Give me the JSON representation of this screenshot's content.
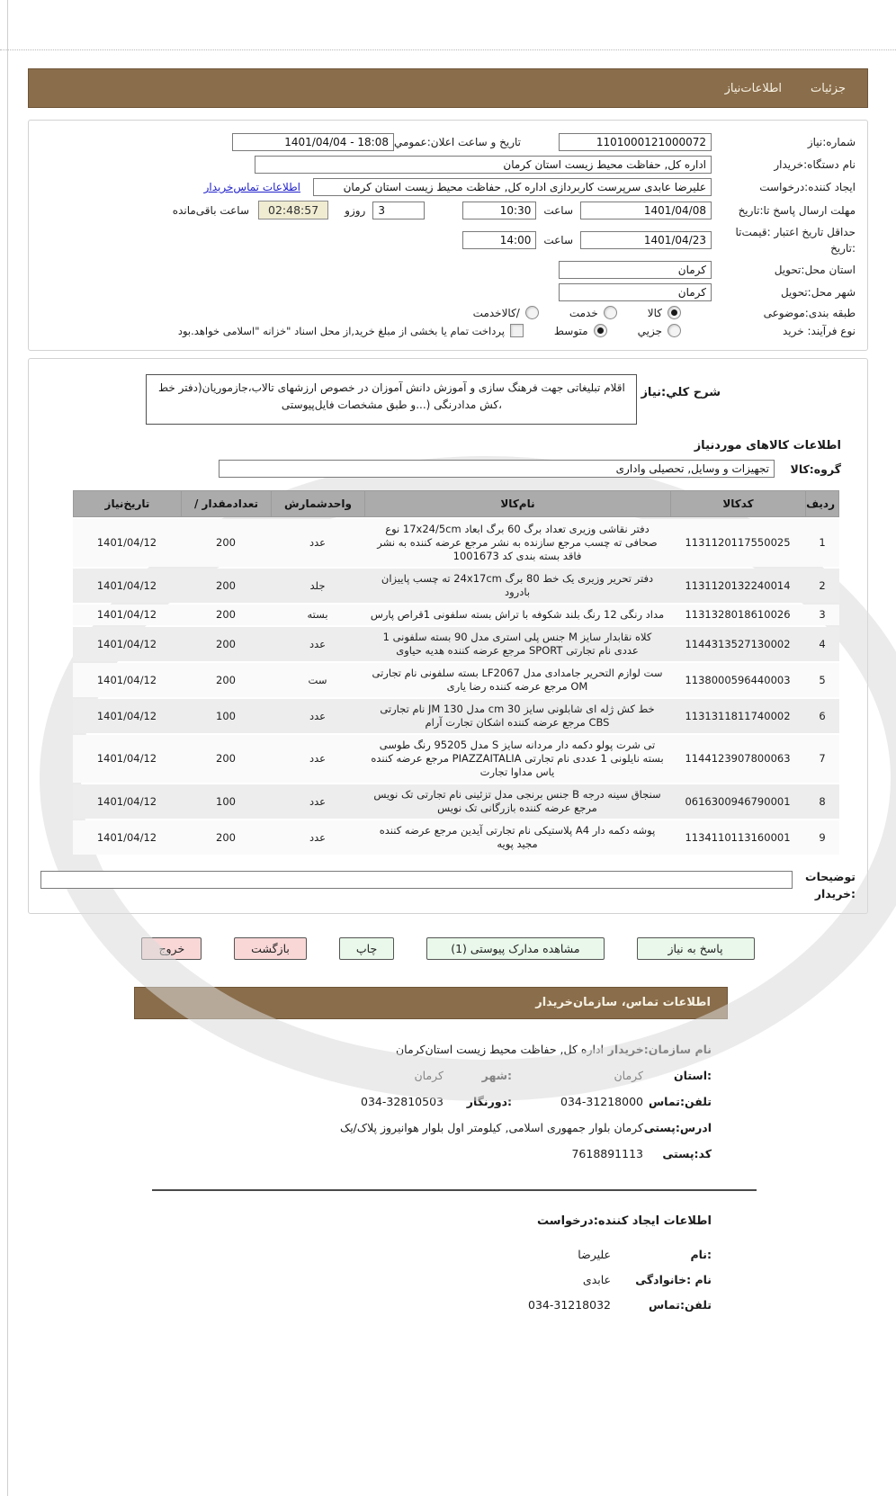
{
  "tabs": {
    "details": "جزئیات",
    "need_info": "اطلاعات‌نیاز"
  },
  "form": {
    "need_number": {
      "label": "شماره:نیاز",
      "value": "1101000121000072"
    },
    "announce": {
      "label": "تاریخ و ساعت اعلان:عمومي",
      "value": "1401/04/04 - 18:08"
    },
    "buyer_org": {
      "label": "نام دستگاه:خریدار",
      "value": "اداره کل, حفاظت محیط زیست استان کرمان"
    },
    "creator": {
      "label": "ایجاد کننده:درخواست",
      "value": "علیرضا عابدی سرپرست کاربردازی اداره کل, حفاظت محیط زیست استان کرمان",
      "link": "اطلاعات تماس‌خریدار"
    },
    "deadline": {
      "label": "مهلت ارسال پاسخ تا:تاریخ",
      "date": "1401/04/08",
      "hour_label": "ساعت",
      "time": "10:30",
      "days": "3",
      "days_label": "روزو",
      "countdown": "02:48:57",
      "remaining_label": "ساعت باقی‌مانده"
    },
    "validity": {
      "label_line1": "حداقل تاریخ اعتبار :قیمت‌تا",
      "label_line2": ":تاریخ",
      "date": "1401/04/23",
      "hour_label": "ساعت",
      "time": "14:00"
    },
    "province": {
      "label": "استان محل:تحویل",
      "value": "کرمان"
    },
    "city": {
      "label": "شهر محل:تحویل",
      "value": "کرمان"
    },
    "classification": {
      "label": "طبقه بندی:موضوعی",
      "options": [
        {
          "label": "کالا",
          "checked": true
        },
        {
          "label": "خدمت",
          "checked": false
        },
        {
          "label": "/کالاخدمت",
          "checked": false
        }
      ]
    },
    "process": {
      "label": "نوع فرآیند: خرید",
      "options": [
        {
          "label": "جزیي",
          "checked": false
        },
        {
          "label": "متوسط",
          "checked": true
        }
      ],
      "checkbox_label": "پرداخت تمام یا بخشی از مبلغ خرید,از محل اسناد \"خزانه \"اسلامی خواهد.بود",
      "checkbox_checked": false
    }
  },
  "need_desc": {
    "label": "شرح کلي:نیاز",
    "value": "اقلام تبلیغاتی جهت فرهنگ سازی و آموزش دانش آموزان در خصوص ارزشهای تالاب،جازموریان(دفتر خط ،کش مدادرنگی (...و طبق مشخصات فایل‌پیوستی"
  },
  "goods_section": {
    "heading": "اطلاعات کالاهای موردنیاز",
    "group_label": "گروه:کالا",
    "group_value": "تجهیزات و وسایل, تحصیلی واداری"
  },
  "items_table": {
    "columns": [
      "ردیف",
      "کدکالا",
      "نام‌کالا",
      "واحدشمارش",
      "تعدادمقدار /",
      "تاریخ‌نیاز"
    ],
    "rows": [
      {
        "row": "1",
        "code": "1131120117550025",
        "name": "دفتر نقاشی وزیری تعداد برگ 60 برگ ابعاد 17x24/5cm نوع صحافی ته چسب مرجع سازنده به نشر مرجع عرضه کننده به نشر فاقد بسته بندی کد 1001673",
        "unit": "عدد",
        "qty": "200",
        "date": "1401/04/12"
      },
      {
        "row": "2",
        "code": "1131120132240014",
        "name": "دفتر تحریر وزیری یک خط 80 برگ 24x17cm ته چسب پاییزان بادرود",
        "unit": "جلد",
        "qty": "200",
        "date": "1401/04/12"
      },
      {
        "row": "3",
        "code": "1131328018610026",
        "name": "مداد رنگی 12 رنگ بلند شکوفه با تراش بسته سلفونی 1قراص پارس",
        "unit": "بسته",
        "qty": "200",
        "date": "1401/04/12"
      },
      {
        "row": "4",
        "code": "1144313527130002",
        "name": "کلاه نقابدار سایز M جنس پلی استری مدل 90 بسته سلفونی 1 عددی نام تجارتی SPORT مرجع عرضه کننده هدیه حیاوی",
        "unit": "عدد",
        "qty": "200",
        "date": "1401/04/12"
      },
      {
        "row": "5",
        "code": "1138000596440003",
        "name": "ست لوازم التحریر جامدادی مدل LF2067 بسته سلفونی نام تجارتی OM مرجع عرضه کننده رضا یاری",
        "unit": "ست",
        "qty": "200",
        "date": "1401/04/12"
      },
      {
        "row": "6",
        "code": "1131311811740002",
        "name": "خط کش ژله ای شابلونی سایز 30 cm مدل JM 130 نام تجارتی CBS مرجع عرضه کننده اشکان تجارت آرام",
        "unit": "عدد",
        "qty": "100",
        "date": "1401/04/12"
      },
      {
        "row": "7",
        "code": "1144123907800063",
        "name": "تی شرت پولو دکمه دار مردانه سایز S مدل 95205 رنگ طوسی بسته نایلونی 1 عددی نام تجارتی PIAZZAITALIA مرجع عرضه کننده یاس مداوا تجارت",
        "unit": "عدد",
        "qty": "200",
        "date": "1401/04/12"
      },
      {
        "row": "8",
        "code": "0616300946790001",
        "name": "سنجاق سینه درجه B جنس برنجی مدل تزئینی نام تجارتی تک نویس مرجع عرضه کننده بازرگانی تک نویس",
        "unit": "عدد",
        "qty": "100",
        "date": "1401/04/12"
      },
      {
        "row": "9",
        "code": "1134110113160001",
        "name": "پوشه دکمه دار A4 پلاستیکی نام تجارتی آیدین مرجع عرضه کننده مجید پویه",
        "unit": "عدد",
        "qty": "200",
        "date": "1401/04/12"
      }
    ]
  },
  "notes": {
    "label_line1": "توضیحات",
    "label_line2": ":خریدار",
    "value": ""
  },
  "actions": {
    "respond": "پاسخ به نیاز",
    "view_docs": "مشاهده مدارک پیوستی (1)",
    "print": "چاپ",
    "back": "بازگشت",
    "exit": "خروج"
  },
  "org_contact": {
    "heading": "اطلاعات  تماس، سازمان‌خریدار",
    "org_name": {
      "label": "نام سازمان:خریدار",
      "value": "اداره کل, حفاظت محیط زیست استان‌کرمان"
    },
    "province": {
      "label": ":استان",
      "value": "کرمان"
    },
    "city": {
      "label": ":شهر",
      "value": "کرمان"
    },
    "phone": {
      "label": "تلفن:تماس",
      "value": "034-31218000"
    },
    "fax": {
      "label": ":دورنگار",
      "value": "034-32810503"
    },
    "address": {
      "label": "ادرس:پستی",
      "value": "کرمان بلوار جمهوری اسلامی, کیلومتر اول بلوار هوانیروز پلاک/یک"
    },
    "postal_code": {
      "label": "کد:پستی",
      "value": "7618891113"
    }
  },
  "requester": {
    "heading": "اطلاعات ایجاد کننده:درخواست",
    "first_name": {
      "label": ":نام",
      "value": "علیرضا"
    },
    "last_name": {
      "label": "نام :خانوادگی",
      "value": "عابدی"
    },
    "phone": {
      "label": "تلفن:تماس",
      "value": "034-31218032"
    }
  },
  "colors": {
    "header_brown": "#8a6d4b",
    "button_green": "#e9f8ea",
    "button_pink": "#f9d7d7",
    "countdown_bg": "#f0ecd2",
    "link_blue": "#2222cc",
    "table_header_gray": "#ababab"
  }
}
